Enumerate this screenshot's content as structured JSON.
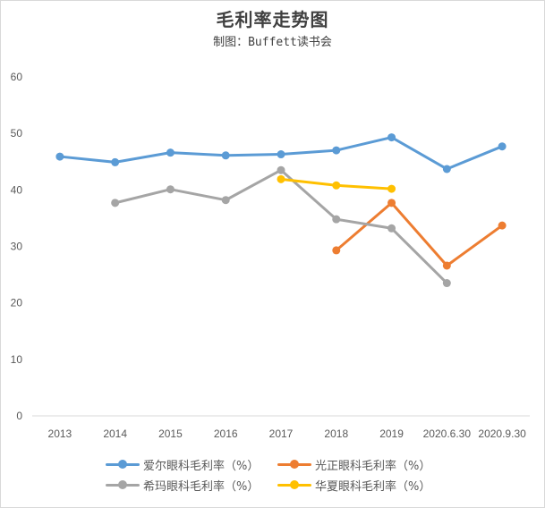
{
  "chart_data": {
    "type": "line",
    "title": "毛利率走势图",
    "subtitle": "制图：Buffett读书会",
    "categories": [
      "2013",
      "2014",
      "2015",
      "2016",
      "2017",
      "2018",
      "2019",
      "2020.6.30",
      "2020.9.30"
    ],
    "y_ticks": [
      "0",
      "10",
      "20",
      "30",
      "40",
      "50",
      "60"
    ],
    "ylim": [
      0,
      60
    ],
    "grid": false,
    "legend_position": "bottom",
    "series": [
      {
        "name": "爱尔眼科毛利率（%）",
        "color": "#5b9bd5",
        "values": [
          45.9,
          44.9,
          46.6,
          46.1,
          46.3,
          47.0,
          49.3,
          43.7,
          47.7
        ]
      },
      {
        "name": "光正眼科毛利率（%）",
        "color": "#ed7d31",
        "values": [
          null,
          null,
          null,
          null,
          null,
          29.3,
          37.7,
          26.6,
          33.7
        ]
      },
      {
        "name": "希玛眼科毛利率（%）",
        "color": "#a5a5a5",
        "values": [
          null,
          37.7,
          40.1,
          38.2,
          43.5,
          34.8,
          33.2,
          23.5,
          null
        ]
      },
      {
        "name": "华夏眼科毛利率（%）",
        "color": "#ffc000",
        "values": [
          null,
          null,
          null,
          null,
          41.9,
          40.8,
          40.2,
          null,
          null
        ]
      }
    ]
  }
}
